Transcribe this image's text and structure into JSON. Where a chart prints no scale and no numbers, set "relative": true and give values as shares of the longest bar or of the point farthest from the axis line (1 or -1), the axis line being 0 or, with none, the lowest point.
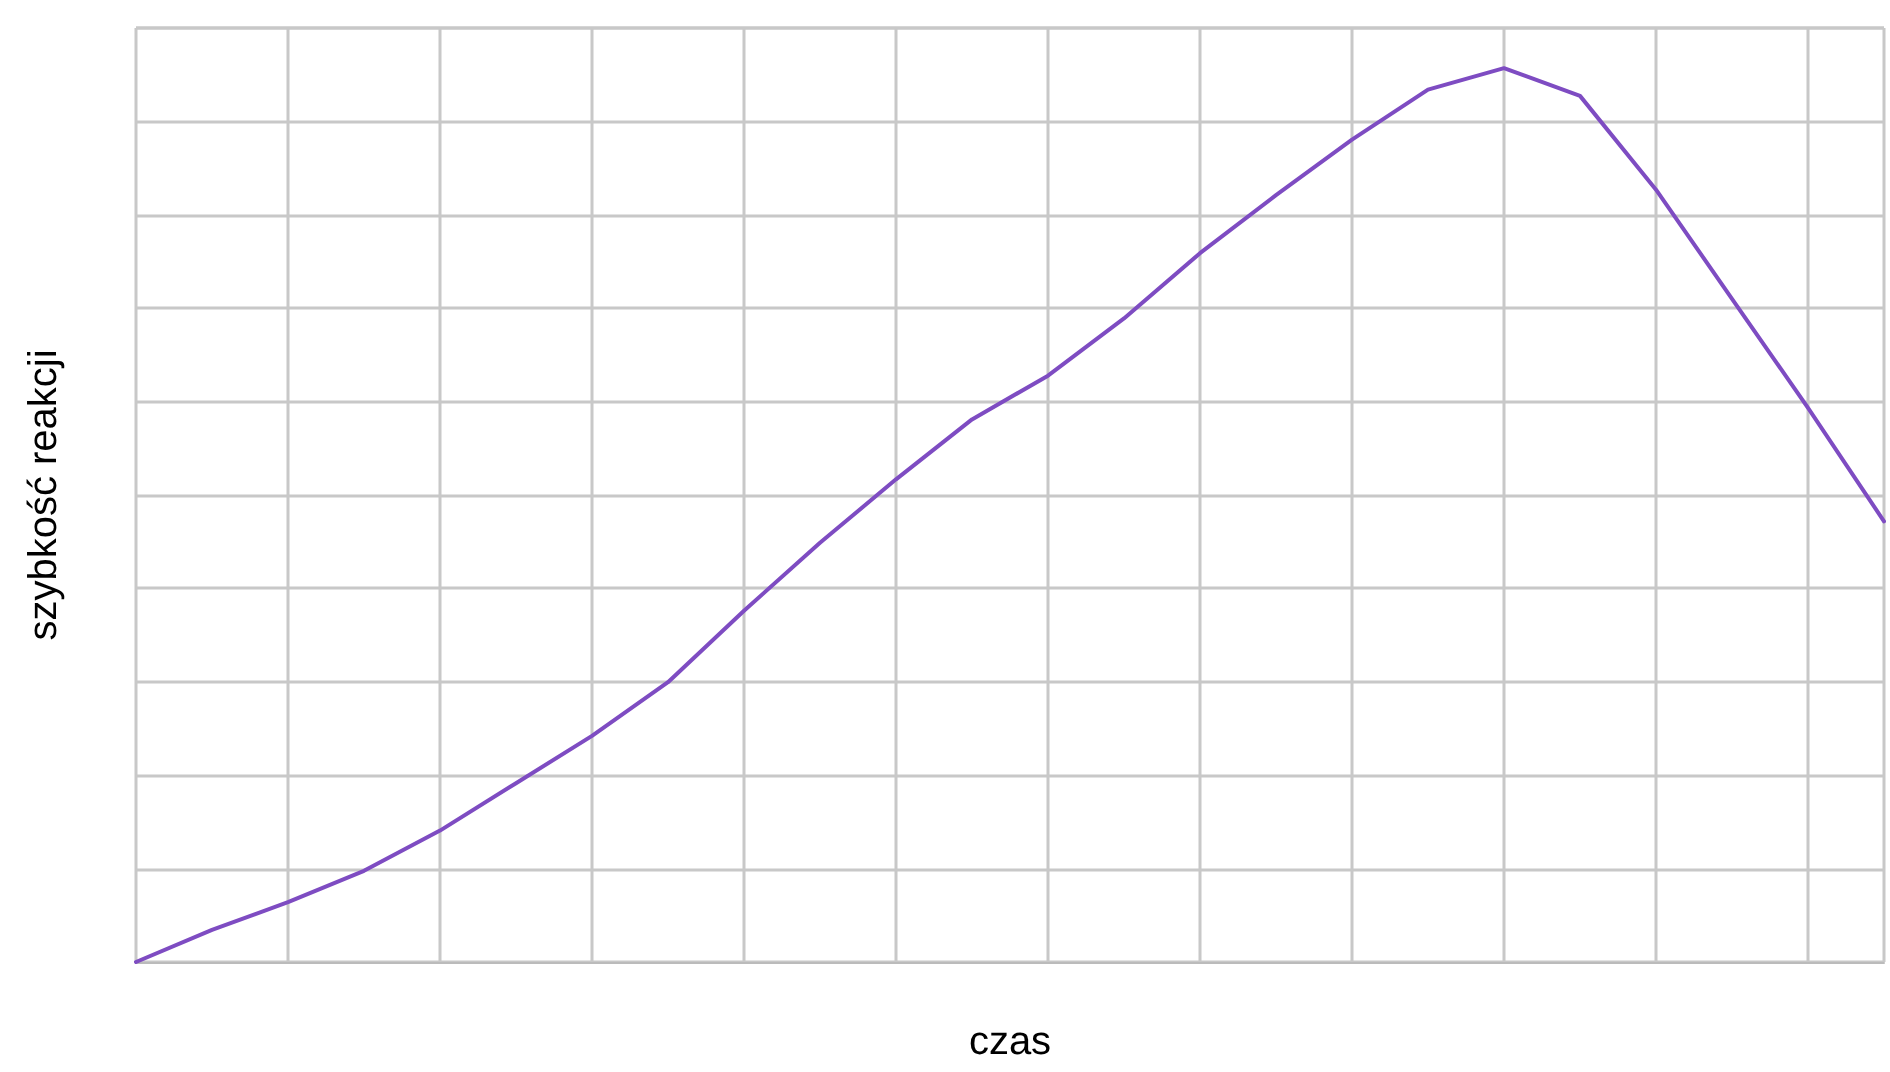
{
  "chart_data": {
    "type": "line",
    "relative": true,
    "xlabel": "czas",
    "ylabel": "szybkość reakcji",
    "grid": true,
    "marker": "none",
    "line_style": "solid",
    "categories": [
      null,
      null,
      null,
      null,
      null,
      null,
      null,
      null,
      null,
      null,
      null,
      null,
      null,
      null,
      null,
      null,
      null,
      null,
      null,
      null,
      null,
      null,
      null,
      null
    ],
    "series": [
      {
        "color": "#7e4cc2",
        "values": [
          0,
          0.036,
          0.067,
          0.102,
          0.147,
          0.2,
          0.253,
          0.313,
          0.393,
          0.469,
          0.54,
          0.607,
          0.656,
          0.72,
          0.793,
          0.858,
          0.92,
          0.976,
          1,
          0.969,
          0.864,
          0.742,
          0.62,
          0.493
        ]
      }
    ]
  }
}
